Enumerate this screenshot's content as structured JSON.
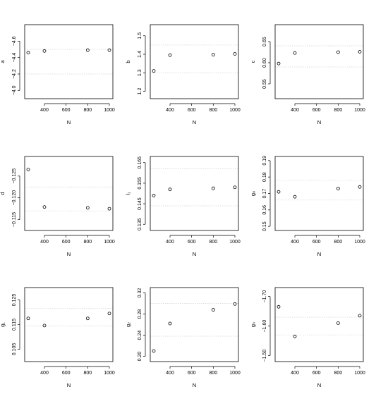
{
  "chart_data": [
    {
      "type": "scatter",
      "xlabel": "N",
      "ylabel": "a",
      "reversed": true,
      "xlim": [
        250,
        1000
      ],
      "ylim": [
        -4.8,
        -3.9
      ],
      "xticks": [
        400,
        600,
        800,
        1000
      ],
      "yticks": [
        -4.6,
        -4.4,
        -4.2,
        -4.0
      ],
      "xtick_labels": [
        "400",
        "600",
        "800",
        "1000"
      ],
      "ytick_labels": [
        "−4.6",
        "−4.4",
        "−4.2",
        "−4.0"
      ],
      "grid": [
        -4.5,
        -4.2
      ],
      "x": [
        250,
        400,
        800,
        1000
      ],
      "y": [
        -4.46,
        -4.48,
        -4.49,
        -4.49
      ]
    },
    {
      "type": "scatter",
      "xlabel": "N",
      "ylabel": "b",
      "reversed": false,
      "xlim": [
        250,
        1000
      ],
      "ylim": [
        1.16,
        1.56
      ],
      "xticks": [
        400,
        600,
        800,
        1000
      ],
      "yticks": [
        1.2,
        1.3,
        1.4,
        1.5
      ],
      "xtick_labels": [
        "400",
        "600",
        "800",
        "1000"
      ],
      "ytick_labels": [
        "1.2",
        "1.3",
        "1.4",
        "1.5"
      ],
      "grid": [
        1.3,
        1.45
      ],
      "x": [
        250,
        400,
        800,
        1000
      ],
      "y": [
        1.31,
        1.395,
        1.398,
        1.402
      ]
    },
    {
      "type": "scatter",
      "xlabel": "N",
      "ylabel": "c",
      "reversed": false,
      "xlim": [
        250,
        1000
      ],
      "ylim": [
        0.515,
        0.69
      ],
      "xticks": [
        400,
        600,
        800,
        1000
      ],
      "yticks": [
        0.55,
        0.6,
        0.65
      ],
      "xtick_labels": [
        "400",
        "600",
        "800",
        "1000"
      ],
      "ytick_labels": [
        "0.55",
        "0.60",
        "0.65"
      ],
      "grid": [
        0.59,
        0.64
      ],
      "x": [
        250,
        400,
        800,
        1000
      ],
      "y": [
        0.598,
        0.623,
        0.625,
        0.626
      ]
    },
    {
      "type": "scatter",
      "xlabel": "N",
      "ylabel": "d",
      "reversed": true,
      "xlim": [
        250,
        1000
      ],
      "ylim": [
        -0.1295,
        -0.1125
      ],
      "xticks": [
        400,
        600,
        800,
        1000
      ],
      "yticks": [
        -0.125,
        -0.12,
        -0.115
      ],
      "xtick_labels": [
        "400",
        "600",
        "800",
        "1000"
      ],
      "ytick_labels": [
        "−0.125",
        "−0.120",
        "−0.115"
      ],
      "grid": [
        -0.1225,
        -0.117
      ],
      "x": [
        250,
        400,
        800,
        1000
      ],
      "y": [
        -0.1265,
        -0.1179,
        -0.1177,
        -0.1175
      ]
    },
    {
      "type": "scatter",
      "xlabel": "N",
      "ylabel": "l₁",
      "reversed": false,
      "xlim": [
        250,
        1000
      ],
      "ylim": [
        0.132,
        0.168
      ],
      "xticks": [
        400,
        600,
        800,
        1000
      ],
      "yticks": [
        0.135,
        0.145,
        0.155,
        0.165
      ],
      "xtick_labels": [
        "400",
        "600",
        "800",
        "1000"
      ],
      "ytick_labels": [
        "0.135",
        "0.145",
        "0.155",
        "0.165"
      ],
      "grid": [
        0.144,
        0.162
      ],
      "x": [
        250,
        400,
        800,
        1000
      ],
      "y": [
        0.149,
        0.152,
        0.1525,
        0.153
      ]
    },
    {
      "type": "scatter",
      "xlabel": "N",
      "ylabel": "g₀",
      "reversed": false,
      "xlim": [
        250,
        1000
      ],
      "ylim": [
        0.1475,
        0.1925
      ],
      "xticks": [
        400,
        600,
        800,
        1000
      ],
      "yticks": [
        0.15,
        0.16,
        0.17,
        0.18,
        0.19
      ],
      "xtick_labels": [
        "400",
        "600",
        "800",
        "1000"
      ],
      "ytick_labels": [
        "0.15",
        "0.16",
        "0.17",
        "0.18",
        "0.19"
      ],
      "grid": [
        0.166,
        0.178
      ],
      "x": [
        250,
        400,
        800,
        1000
      ],
      "y": [
        0.171,
        0.168,
        0.173,
        0.174
      ]
    },
    {
      "type": "scatter",
      "xlabel": "N",
      "ylabel": "g₁",
      "reversed": false,
      "xlim": [
        250,
        1000
      ],
      "ylim": [
        0.1,
        0.13
      ],
      "xticks": [
        400,
        600,
        800,
        1000
      ],
      "yticks": [
        0.105,
        0.115,
        0.125
      ],
      "xtick_labels": [
        "400",
        "600",
        "800",
        "1000"
      ],
      "ytick_labels": [
        "0.105",
        "0.115",
        "0.125"
      ],
      "grid": [
        0.1145,
        0.1215
      ],
      "x": [
        250,
        400,
        800,
        1000
      ],
      "y": [
        0.1175,
        0.1146,
        0.1175,
        0.1195
      ]
    },
    {
      "type": "scatter",
      "xlabel": "N",
      "ylabel": "g₂",
      "reversed": false,
      "xlim": [
        250,
        1000
      ],
      "ylim": [
        0.19,
        0.33
      ],
      "xticks": [
        400,
        600,
        800,
        1000
      ],
      "yticks": [
        0.2,
        0.24,
        0.28,
        0.32
      ],
      "xtick_labels": [
        "400",
        "600",
        "800",
        "1000"
      ],
      "ytick_labels": [
        "0.20",
        "0.24",
        "0.28",
        "0.32"
      ],
      "grid": [
        0.238,
        0.3
      ],
      "x": [
        250,
        400,
        800,
        1000
      ],
      "y": [
        0.21,
        0.262,
        0.288,
        0.299
      ]
    },
    {
      "type": "scatter",
      "xlabel": "N",
      "ylabel": "g₃",
      "reversed": true,
      "xlim": [
        250,
        1000
      ],
      "ylim": [
        -1.73,
        -1.48
      ],
      "xticks": [
        400,
        600,
        800,
        1000
      ],
      "yticks": [
        -1.7,
        -1.6,
        -1.5
      ],
      "xtick_labels": [
        "400",
        "600",
        "800",
        "1000"
      ],
      "ytick_labels": [
        "−1.70",
        "−1.60",
        "−1.50"
      ],
      "grid": [
        -1.63,
        -1.57
      ],
      "x": [
        250,
        400,
        800,
        1000
      ],
      "y": [
        -1.665,
        -1.565,
        -1.61,
        -1.635
      ]
    }
  ]
}
